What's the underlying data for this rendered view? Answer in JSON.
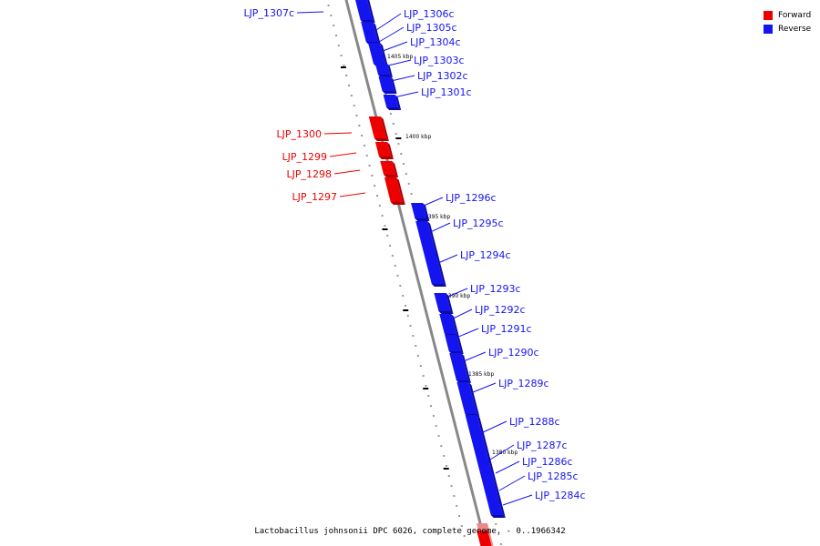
{
  "colors": {
    "forward": "#ee0000",
    "forward_dark": "#b00000",
    "reverse": "#1414f0",
    "reverse_dark": "#0a0aa8",
    "backbone": "#888888",
    "tick": "#000000"
  },
  "legend": [
    {
      "label": "Forward",
      "color": "#ee0000"
    },
    {
      "label": "Reverse",
      "color": "#1414f0"
    }
  ],
  "caption": "Lactobacillus johnsonii DPC 6026, complete genome. - 0..1966342",
  "scale_labels": [
    "1405 kbp",
    "1400 kbp",
    "1395 kbp",
    "1390 kbp",
    "1385 kbp",
    "1380 kbp"
  ],
  "genes": [
    {
      "name": "LJP_1307c",
      "strand": "reverse"
    },
    {
      "name": "LJP_1306c",
      "strand": "reverse"
    },
    {
      "name": "LJP_1305c",
      "strand": "reverse"
    },
    {
      "name": "LJP_1304c",
      "strand": "reverse"
    },
    {
      "name": "LJP_1303c",
      "strand": "reverse"
    },
    {
      "name": "LJP_1302c",
      "strand": "reverse"
    },
    {
      "name": "LJP_1301c",
      "strand": "reverse"
    },
    {
      "name": "LJP_1300",
      "strand": "forward"
    },
    {
      "name": "LJP_1299",
      "strand": "forward"
    },
    {
      "name": "LJP_1298",
      "strand": "forward"
    },
    {
      "name": "LJP_1297",
      "strand": "forward"
    },
    {
      "name": "LJP_1296c",
      "strand": "reverse"
    },
    {
      "name": "LJP_1295c",
      "strand": "reverse"
    },
    {
      "name": "LJP_1294c",
      "strand": "reverse"
    },
    {
      "name": "LJP_1293c",
      "strand": "reverse"
    },
    {
      "name": "LJP_1292c",
      "strand": "reverse"
    },
    {
      "name": "LJP_1291c",
      "strand": "reverse"
    },
    {
      "name": "LJP_1290c",
      "strand": "reverse"
    },
    {
      "name": "LJP_1289c",
      "strand": "reverse"
    },
    {
      "name": "LJP_1288c",
      "strand": "reverse"
    },
    {
      "name": "LJP_1287c",
      "strand": "reverse"
    },
    {
      "name": "LJP_1286c",
      "strand": "reverse"
    },
    {
      "name": "LJP_1285c",
      "strand": "reverse"
    },
    {
      "name": "LJP_1284c",
      "strand": "reverse"
    }
  ]
}
